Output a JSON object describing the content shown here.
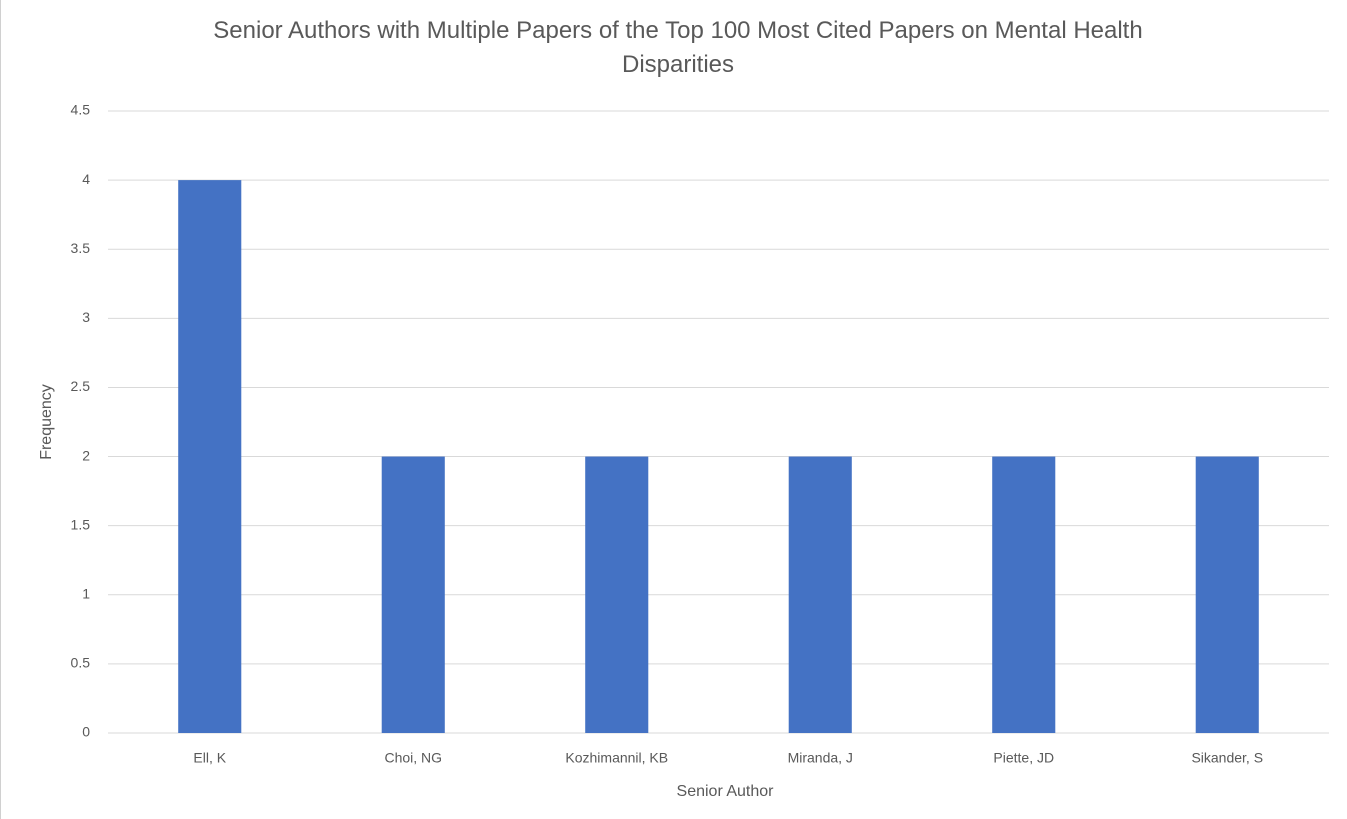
{
  "chart_data": {
    "type": "bar",
    "title": "Senior Authors with Multiple Papers of the Top 100 Most Cited Papers on Mental Health Disparities",
    "x_label": "Senior Author",
    "y_label": "Frequency",
    "categories": [
      "Ell, K",
      "Choi, NG",
      "Kozhimannil, KB",
      "Miranda, J",
      "Piette, JD",
      "Sikander, S"
    ],
    "values": [
      4,
      2,
      2,
      2,
      2,
      2
    ],
    "color": "#4472c4",
    "ylim": [
      0,
      4.5
    ],
    "yticks": [
      0,
      0.5,
      1,
      1.5,
      2,
      2.5,
      3,
      3.5,
      4,
      4.5
    ],
    "grid": true
  }
}
